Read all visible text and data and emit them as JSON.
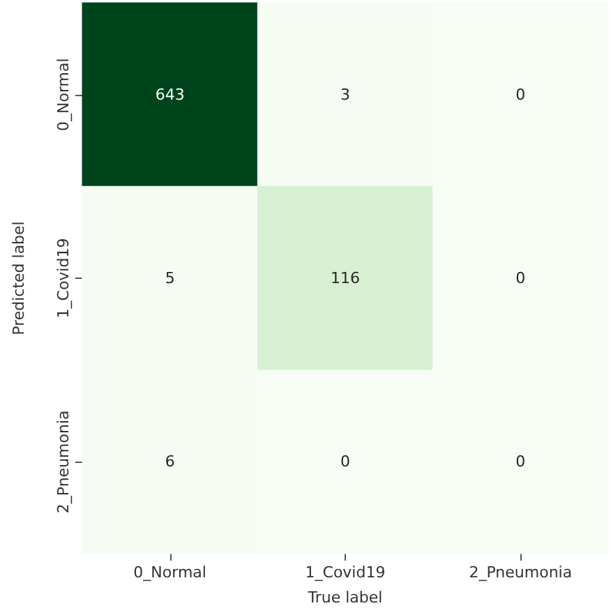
{
  "chart_data": {
    "type": "heatmap",
    "xlabel": "True label",
    "ylabel": "Predicted label",
    "categories": [
      "0_Normal",
      "1_Covid19",
      "2_Pneumonia"
    ],
    "y_categories": [
      "0_Normal",
      "1_Covid19",
      "2_Pneumonia"
    ],
    "cells": [
      [
        643,
        3,
        0
      ],
      [
        5,
        116,
        0
      ],
      [
        6,
        0,
        0
      ]
    ],
    "data_labels": true
  }
}
